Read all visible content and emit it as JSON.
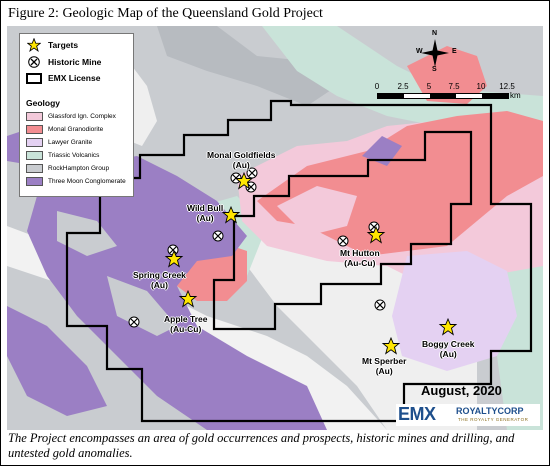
{
  "figure": {
    "title": "Figure 2: Geologic Map of the Queensland Gold Project",
    "caption": "The Project encompasses an area of gold occurrences and prospects, historic mines and drilling, and untested gold anomalies."
  },
  "legend": {
    "targets_label": "Targets",
    "historic_mine_label": "Historic Mine",
    "license_label": "EMX License",
    "geology_heading": "Geology",
    "units": [
      {
        "label": "Glassford Ign. Complex",
        "color": "#f3c9da"
      },
      {
        "label": "Monal Granodiorite",
        "color": "#f28d91"
      },
      {
        "label": "Lawyer Granite",
        "color": "#e4d1f2"
      },
      {
        "label": "Triassic Volcanics",
        "color": "#c9e3d9"
      },
      {
        "label": "RockHampton Group",
        "color": "#c9ccd0"
      },
      {
        "label": "Three Moon Conglomerate",
        "color": "#9b7fc4"
      }
    ]
  },
  "compass": {
    "n": "N",
    "s": "S",
    "e": "E",
    "w": "W"
  },
  "scale_bar": {
    "ticks": [
      "0",
      "2.5",
      "5",
      "7.5",
      "10",
      "12.5"
    ],
    "unit": "km"
  },
  "targets": [
    {
      "name": "Monal Goldfields",
      "commodity": "(Au)"
    },
    {
      "name": "Wild Bull",
      "commodity": "(Au)"
    },
    {
      "name": "Spring Creek",
      "commodity": "(Au)"
    },
    {
      "name": "Apple Tree",
      "commodity": "(Au-Cu)"
    },
    {
      "name": "Mt Hutton",
      "commodity": "(Au-Cu)"
    },
    {
      "name": "Mt Sperber",
      "commodity": "(Au)"
    },
    {
      "name": "Boggy Creek",
      "commodity": "(Au)"
    }
  ],
  "date_label": "August, 2020",
  "logos": {
    "emx": "EMX",
    "royaltycorp": "ROYALTYCORP",
    "tagline": "THE ROYALTY GENERATOR"
  },
  "colors": {
    "license_outline": "#000000",
    "target_star": "#ffe600",
    "date_text": "#000000",
    "emx_blue": "#1e4f8c"
  }
}
